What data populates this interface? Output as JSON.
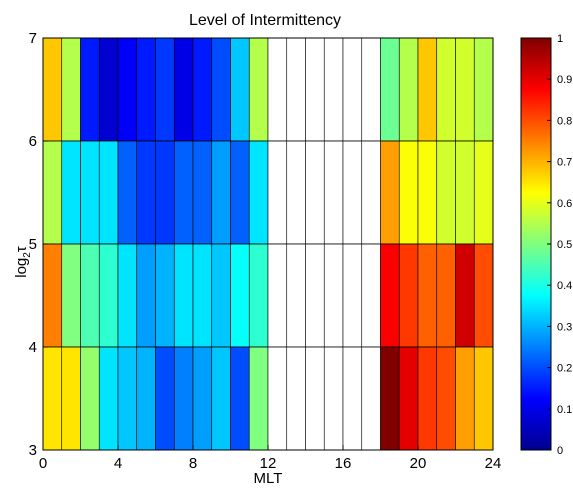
{
  "chart_data": {
    "type": "heatmap",
    "title": "Level of Intermittency",
    "xlabel": "MLT",
    "ylabel": "log",
    "ylabel_sub": "2",
    "ylabel_suffix": "τ",
    "xlim": [
      0,
      24
    ],
    "ylim": [
      3,
      7
    ],
    "xticks": [
      0,
      4,
      8,
      12,
      16,
      20,
      24
    ],
    "xtick_labels": [
      "0",
      "4",
      "8",
      "12",
      "16",
      "20",
      "24"
    ],
    "yticks": [
      3,
      4,
      5,
      6,
      7
    ],
    "ytick_labels": [
      "3",
      "4",
      "5",
      "6",
      "7"
    ],
    "x_bin_width": 1,
    "y_bins": [
      [
        6,
        7
      ],
      [
        5,
        6
      ],
      [
        4,
        5
      ],
      [
        3,
        4
      ]
    ],
    "values": [
      [
        0.68,
        0.55,
        0.15,
        0.08,
        0.12,
        0.15,
        0.18,
        0.1,
        0.15,
        0.2,
        0.32,
        0.55,
        null,
        null,
        null,
        null,
        null,
        null,
        0.48,
        0.55,
        0.68,
        0.58,
        0.58,
        0.55
      ],
      [
        0.55,
        0.35,
        0.35,
        0.35,
        0.22,
        0.18,
        0.18,
        0.22,
        0.22,
        0.28,
        0.22,
        0.35,
        null,
        null,
        null,
        null,
        null,
        null,
        0.72,
        0.62,
        0.62,
        0.58,
        0.58,
        0.6
      ],
      [
        0.75,
        0.5,
        0.45,
        0.42,
        0.35,
        0.28,
        0.3,
        0.35,
        0.35,
        0.32,
        0.38,
        0.42,
        null,
        null,
        null,
        null,
        null,
        null,
        0.88,
        0.82,
        0.78,
        0.78,
        0.92,
        0.8
      ],
      [
        0.65,
        0.65,
        0.52,
        0.35,
        0.32,
        0.3,
        0.2,
        0.25,
        0.28,
        0.32,
        0.2,
        0.5,
        null,
        null,
        null,
        null,
        null,
        null,
        1.0,
        0.9,
        0.82,
        0.8,
        0.72,
        0.68
      ]
    ],
    "colorbar": {
      "colormap": "jet",
      "range": [
        0,
        1
      ],
      "tick_labels": [
        "0",
        "0.1",
        "0.2",
        "0.3",
        "0.4",
        "0.5",
        "0.6",
        "0.7",
        "0.8",
        "0.9",
        "1"
      ]
    },
    "grid": true
  }
}
